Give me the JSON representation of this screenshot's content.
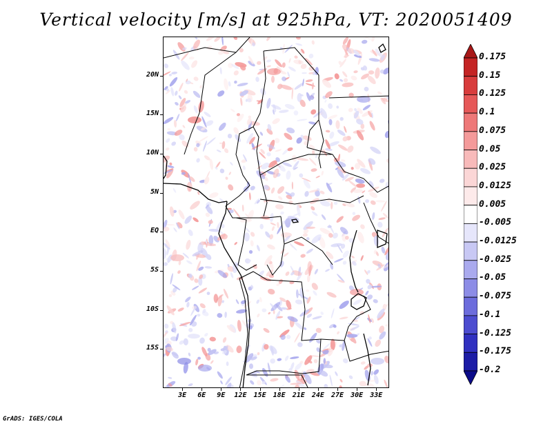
{
  "title": "Vertical velocity [m/s] at 925hPa, VT: 2020051409",
  "credit": "GrADS: IGES/COLA",
  "lat_labels": [
    "20N",
    "15N",
    "10N",
    "5N",
    "EQ",
    "5S",
    "10S",
    "15S"
  ],
  "lat_values": [
    20,
    15,
    10,
    5,
    0,
    -5,
    -10,
    -15
  ],
  "lon_labels": [
    "3E",
    "6E",
    "9E",
    "12E",
    "15E",
    "18E",
    "21E",
    "24E",
    "27E",
    "30E",
    "33E"
  ],
  "lon_values": [
    3,
    6,
    9,
    12,
    15,
    18,
    21,
    24,
    27,
    30,
    33
  ],
  "map_extent": {
    "lon_min": 0,
    "lon_max": 35,
    "lat_min": -20,
    "lat_max": 25
  },
  "colorbar": {
    "labels": [
      "0.175",
      "0.15",
      "0.125",
      "0.1",
      "0.075",
      "0.05",
      "0.025",
      "0.0125",
      "0.005",
      "-0.005",
      "-0.0125",
      "-0.025",
      "-0.05",
      "-0.075",
      "-0.1",
      "-0.125",
      "-0.175",
      "-0.2"
    ],
    "colors": [
      "#a81818",
      "#c42424",
      "#d83c3c",
      "#e65858",
      "#ee7878",
      "#f49a9a",
      "#f8baba",
      "#fbd6d6",
      "#fdeaea",
      "#ffffff",
      "#e6e6fb",
      "#c8c8f4",
      "#aaaaee",
      "#8c8ce6",
      "#6c6cdc",
      "#4c4cd0",
      "#3030c0",
      "#1c1ca6",
      "#0c0c8a"
    ]
  }
}
